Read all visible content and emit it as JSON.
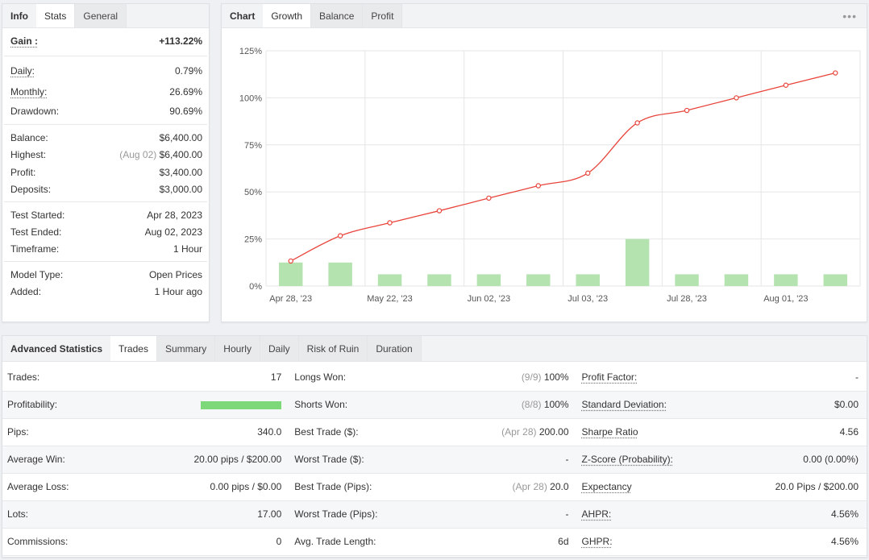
{
  "info_panel": {
    "tabs": [
      "Info",
      "Stats",
      "General"
    ],
    "gain": {
      "label": "Gain :",
      "value": "+113.22%"
    },
    "daily": {
      "label": "Daily:",
      "value": "0.79%"
    },
    "monthly": {
      "label": "Monthly:",
      "value": "26.69%"
    },
    "drawdown": {
      "label": "Drawdown:",
      "value": "90.69%"
    },
    "balance": {
      "label": "Balance:",
      "value": "$6,400.00"
    },
    "highest": {
      "label": "Highest:",
      "note": "(Aug 02)",
      "value": "$6,400.00"
    },
    "profit": {
      "label": "Profit:",
      "value": "$3,400.00"
    },
    "deposits": {
      "label": "Deposits:",
      "value": "$3,000.00"
    },
    "test_started": {
      "label": "Test Started:",
      "value": "Apr 28, 2023"
    },
    "test_ended": {
      "label": "Test Ended:",
      "value": "Aug 02, 2023"
    },
    "timeframe": {
      "label": "Timeframe:",
      "value": "1 Hour"
    },
    "model_type": {
      "label": "Model Type:",
      "value": "Open Prices"
    },
    "added": {
      "label": "Added:",
      "value": "1 Hour ago"
    }
  },
  "chart_panel": {
    "tabs": [
      "Chart",
      "Growth",
      "Balance",
      "Profit"
    ],
    "menu_icon": "more-dots-icon"
  },
  "chart_data": {
    "type": "line",
    "x_tick_labels": [
      "Apr 28, '23",
      "May 22, '23",
      "Jun 02, '23",
      "Jul 03, '23",
      "Jul 28, '23",
      "Aug 01, '23"
    ],
    "y_tick_labels": [
      "0%",
      "25%",
      "50%",
      "75%",
      "100%",
      "125%"
    ],
    "ylim": [
      0,
      125
    ],
    "grid": true,
    "series": [
      {
        "type": "line",
        "values": [
          13.3,
          26.7,
          33.6,
          40.0,
          46.7,
          53.3,
          60.0,
          86.7,
          93.3,
          100.0,
          106.7,
          113.22
        ]
      },
      {
        "type": "bar",
        "values": [
          12.5,
          12.5,
          6.25,
          6.25,
          6.25,
          6.25,
          6.25,
          25.0,
          6.25,
          6.25,
          6.25,
          6.25
        ]
      }
    ],
    "colors": {
      "line": "#e8453c",
      "bar": "#b5e3b0"
    }
  },
  "advanced": {
    "title": "Advanced Statistics",
    "tabs": [
      "Trades",
      "Summary",
      "Hourly",
      "Daily",
      "Risk of Ruin",
      "Duration"
    ],
    "rows": [
      {
        "l1": "Trades:",
        "v1": "17",
        "l2": "Longs Won:",
        "n2": "(9/9)",
        "v2": "100%",
        "l3": "Profit Factor:",
        "v3": "-"
      },
      {
        "l1": "Profitability:",
        "v1": "",
        "l2": "Shorts Won:",
        "n2": "(8/8)",
        "v2": "100%",
        "l3": "Standard Deviation:",
        "v3": "$0.00"
      },
      {
        "l1": "Pips:",
        "v1": "340.0",
        "l2": "Best Trade ($):",
        "n2": "(Apr 28)",
        "v2": "200.00",
        "l3": "Sharpe Ratio",
        "v3": "4.56"
      },
      {
        "l1": "Average Win:",
        "v1": "20.00 pips / $200.00",
        "l2": "Worst Trade ($):",
        "n2": "",
        "v2": "-",
        "l3": "Z-Score (Probability):",
        "v3": "0.00 (0.00%)"
      },
      {
        "l1": "Average Loss:",
        "v1": "0.00 pips / $0.00",
        "l2": "Best Trade (Pips):",
        "n2": "(Apr 28)",
        "v2": "20.0",
        "l3": "Expectancy",
        "v3": "20.0 Pips / $200.00"
      },
      {
        "l1": "Lots:",
        "v1": "17.00",
        "l2": "Worst Trade (Pips):",
        "n2": "",
        "v2": "-",
        "l3": "AHPR:",
        "v3": "4.56%"
      },
      {
        "l1": "Commissions:",
        "v1": "0",
        "l2": "Avg. Trade Length:",
        "n2": "",
        "v2": "6d",
        "l3": "GHPR:",
        "v3": "4.56%"
      }
    ],
    "profitability_bar": {
      "fraction": 1.0,
      "color": "#7dd87a"
    }
  }
}
